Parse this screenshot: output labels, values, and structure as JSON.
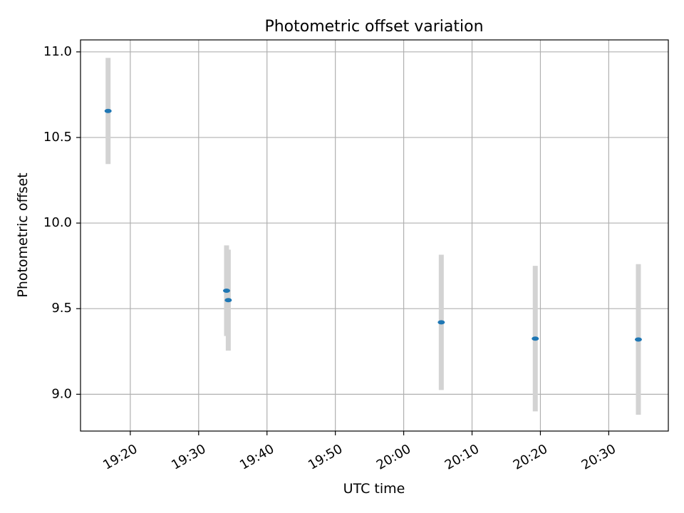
{
  "chart_data": {
    "type": "scatter",
    "title": "Photometric offset variation",
    "xlabel": "UTC time",
    "ylabel": "Photometric offset",
    "x_axis": {
      "kind": "time",
      "range": [
        "19:12:43",
        "20:38:43"
      ],
      "ticks": [
        "19:20",
        "19:30",
        "19:40",
        "19:50",
        "20:00",
        "20:10",
        "20:20",
        "20:30"
      ]
    },
    "y_axis": {
      "range": [
        8.785,
        11.07
      ],
      "ticks": [
        9.0,
        9.5,
        10.0,
        10.5,
        11.0
      ],
      "tick_labels": [
        "9.0",
        "9.5",
        "10.0",
        "10.5",
        "11.0"
      ]
    },
    "grid": true,
    "series": [
      {
        "points": [
          {
            "x": "19:16:45",
            "y": 10.655,
            "yerr": 0.31
          },
          {
            "x": "19:34:05",
            "y": 9.605,
            "yerr": 0.265
          },
          {
            "x": "19:34:20",
            "y": 9.55,
            "yerr": 0.295
          },
          {
            "x": "20:05:30",
            "y": 9.42,
            "yerr": 0.395
          },
          {
            "x": "20:19:15",
            "y": 9.325,
            "yerr": 0.425
          },
          {
            "x": "20:34:20",
            "y": 9.32,
            "yerr": 0.44
          }
        ]
      }
    ],
    "colors": {
      "points": "#1f77b4",
      "error_bars": "#d3d3d3",
      "grid": "#b0b0b0",
      "axes": "#000000"
    }
  }
}
